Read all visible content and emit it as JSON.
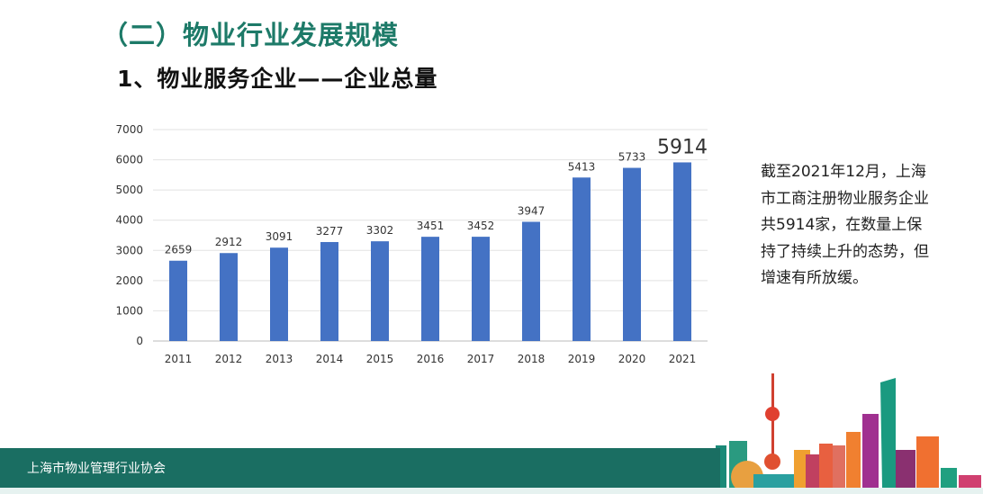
{
  "header": {
    "title": "（二）物业行业发展规模",
    "subtitle": "1、物业服务企业——企业总量"
  },
  "note": "截至2021年12月，上海市工商注册物业服务企业共5914家，在数量上保持了持续上升的态势，但增速有所放缓。",
  "footer": {
    "org": "上海市物业管理行业协会"
  },
  "colors": {
    "bar": "#4472c4",
    "title": "#1d7a68",
    "footer": "#1a6e62"
  },
  "chart_data": {
    "type": "bar",
    "title": "",
    "xlabel": "",
    "ylabel": "",
    "categories": [
      "2011",
      "2012",
      "2013",
      "2014",
      "2015",
      "2016",
      "2017",
      "2018",
      "2019",
      "2020",
      "2021"
    ],
    "values": [
      2659,
      2912,
      3091,
      3277,
      3302,
      3451,
      3452,
      3947,
      5413,
      5733,
      5914
    ],
    "data_labels": [
      "2659",
      "2912",
      "3091",
      "3277",
      "3302",
      "3451",
      "3452",
      "3947",
      "5413",
      "5733",
      "5914"
    ],
    "yticks": [
      "0",
      "1000",
      "2000",
      "3000",
      "4000",
      "5000",
      "6000",
      "7000"
    ],
    "ylim": [
      0,
      7000
    ],
    "grid": true,
    "highlight_last": true
  }
}
